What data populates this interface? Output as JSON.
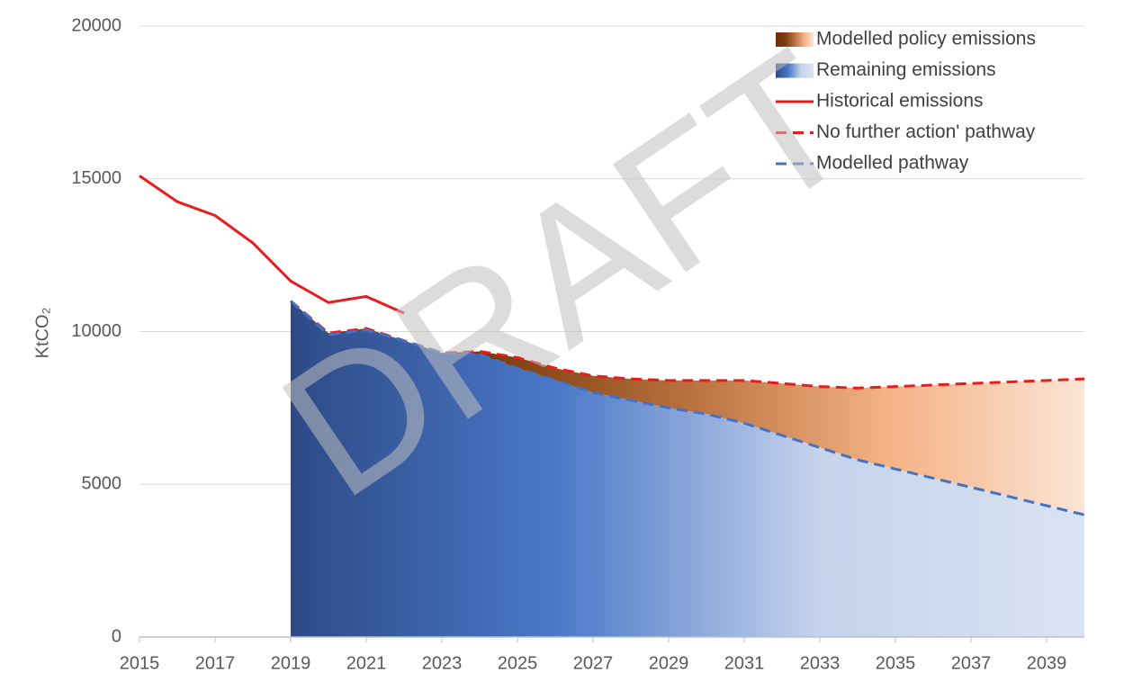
{
  "chart_data": {
    "type": "line",
    "watermark": "DRAFT",
    "ylabel": "KtCO₂",
    "xlim": [
      2015,
      2040
    ],
    "xticks": [
      2015,
      2017,
      2019,
      2021,
      2023,
      2025,
      2027,
      2029,
      2031,
      2033,
      2035,
      2037,
      2039
    ],
    "ylim": [
      0,
      20000
    ],
    "yticks": [
      0,
      5000,
      10000,
      15000,
      20000
    ],
    "grid": true,
    "legend": "top-right",
    "series": [
      {
        "name": "Modelled policy emissions",
        "kind": "area",
        "stacked": true,
        "colors": [
          "#6b300a",
          "#7b3b0e",
          "#b8703e",
          "#f4b183",
          "#fbe5d6"
        ],
        "x": [
          2019,
          2020,
          2021,
          2022,
          2023,
          2024,
          2025,
          2026,
          2027,
          2028,
          2029,
          2030,
          2031,
          2032,
          2033,
          2034,
          2035,
          2036,
          2037,
          2038,
          2039,
          2040
        ],
        "values": [
          0,
          50,
          50,
          0,
          0,
          100,
          350,
          400,
          550,
          700,
          900,
          1100,
          1400,
          1700,
          2000,
          2350,
          2700,
          3050,
          3400,
          3750,
          4100,
          4450
        ]
      },
      {
        "name": "Remaining emissions",
        "kind": "area",
        "colors": [
          "#2d4a86",
          "#4a78c8",
          "#c6d3ec",
          "#dae3f3"
        ],
        "x": [
          2019,
          2020,
          2021,
          2022,
          2023,
          2024,
          2025,
          2026,
          2027,
          2028,
          2029,
          2030,
          2031,
          2032,
          2033,
          2034,
          2035,
          2036,
          2037,
          2038,
          2039,
          2040
        ],
        "values": [
          11000,
          9900,
          10050,
          9700,
          9300,
          9250,
          8800,
          8400,
          8000,
          7750,
          7500,
          7300,
          7000,
          6600,
          6200,
          5800,
          5500,
          5200,
          4900,
          4600,
          4300,
          4000
        ]
      },
      {
        "name": "Historical emissions",
        "kind": "line",
        "dash": false,
        "color": "#e81c1c",
        "x": [
          2015,
          2016,
          2017,
          2018,
          2019,
          2020,
          2021,
          2022
        ],
        "values": [
          15100,
          14250,
          13800,
          12900,
          11650,
          10950,
          11150,
          10600
        ]
      },
      {
        "name": "No further action' pathway",
        "kind": "line",
        "dash": true,
        "color": "#e81c1c",
        "x": [
          2019,
          2020,
          2021,
          2022,
          2023,
          2024,
          2025,
          2026,
          2027,
          2028,
          2029,
          2030,
          2031,
          2032,
          2033,
          2034,
          2035,
          2036,
          2037,
          2038,
          2039,
          2040
        ],
        "values": [
          11000,
          9950,
          10100,
          9700,
          9300,
          9350,
          9150,
          8800,
          8550,
          8450,
          8400,
          8400,
          8400,
          8300,
          8200,
          8150,
          8200,
          8250,
          8300,
          8350,
          8400,
          8450
        ]
      },
      {
        "name": "Modelled pathway",
        "kind": "line",
        "dash": true,
        "color": "#4472c4",
        "x": [
          2019,
          2020,
          2021,
          2022,
          2023,
          2024,
          2025,
          2026,
          2027,
          2028,
          2029,
          2030,
          2031,
          2032,
          2033,
          2034,
          2035,
          2036,
          2037,
          2038,
          2039,
          2040
        ],
        "values": [
          11000,
          9900,
          10050,
          9700,
          9300,
          9250,
          8800,
          8400,
          8000,
          7750,
          7500,
          7300,
          7000,
          6600,
          6200,
          5800,
          5500,
          5200,
          4900,
          4600,
          4300,
          4000
        ]
      }
    ]
  }
}
